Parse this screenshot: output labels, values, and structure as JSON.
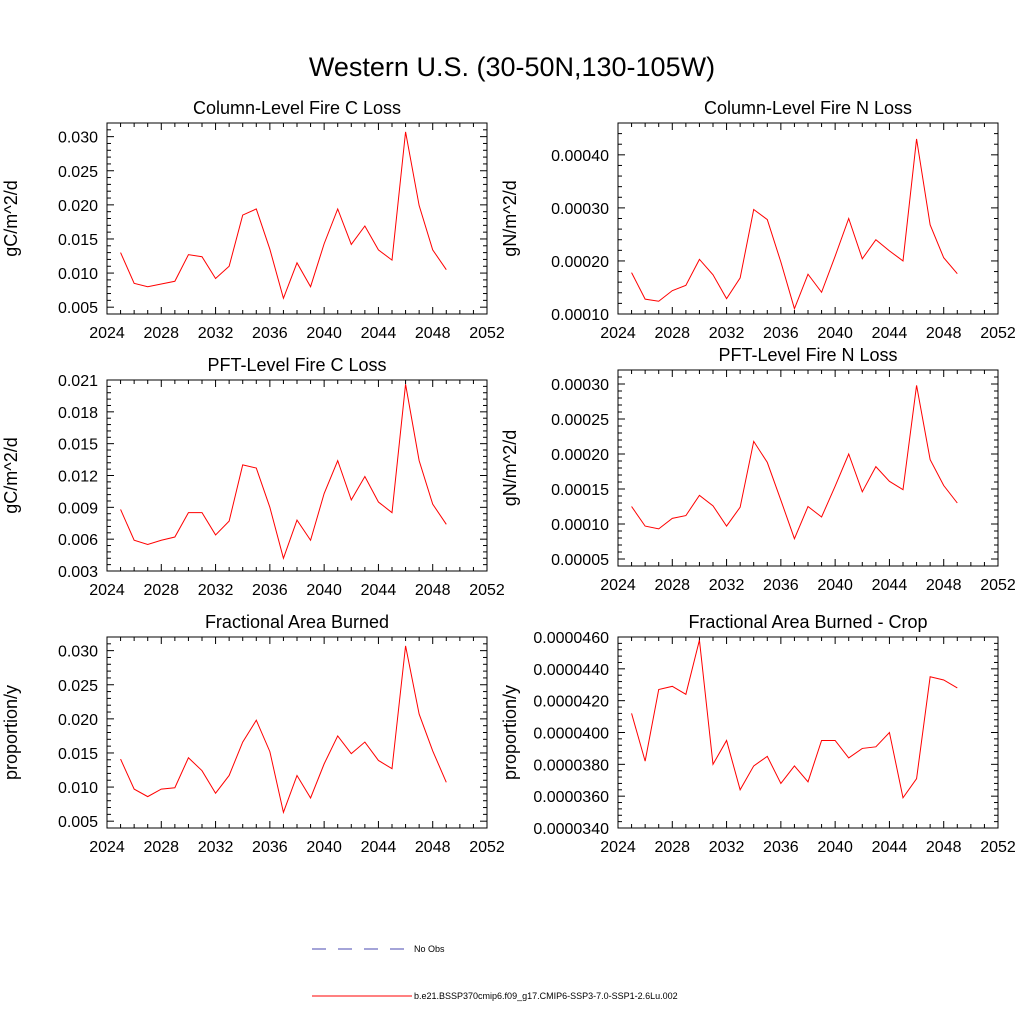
{
  "figure": {
    "title": "Western U.S. (30-50N,130-105W)"
  },
  "colors": {
    "series": "#ff0000",
    "obs": "#4a4ab0",
    "axes": "#000000"
  },
  "chart_data": [
    {
      "type": "line",
      "title": "Column-Level Fire C Loss",
      "xlabel": "",
      "ylabel": "gC/m^2/d",
      "xlim": [
        2024,
        2052
      ],
      "ylim": [
        0.004,
        0.032
      ],
      "xticks": [
        2024,
        2028,
        2032,
        2036,
        2040,
        2044,
        2048,
        2052
      ],
      "yticks": [
        0.005,
        0.01,
        0.015,
        0.02,
        0.025,
        0.03
      ],
      "ytick_labels": [
        "0.005",
        "0.010",
        "0.015",
        "0.020",
        "0.025",
        "0.030"
      ],
      "x": [
        2025,
        2026,
        2027,
        2028,
        2029,
        2030,
        2031,
        2032,
        2033,
        2034,
        2035,
        2036,
        2037,
        2038,
        2039,
        2040,
        2041,
        2042,
        2043,
        2044,
        2045,
        2046,
        2047,
        2048,
        2049
      ],
      "series": [
        {
          "values": [
            0.013,
            0.0085,
            0.008,
            0.0084,
            0.0088,
            0.0127,
            0.0124,
            0.0092,
            0.011,
            0.0185,
            0.0194,
            0.0135,
            0.0063,
            0.0115,
            0.008,
            0.0143,
            0.0194,
            0.0142,
            0.0169,
            0.0134,
            0.0119,
            0.0307,
            0.0199,
            0.0134,
            0.0105
          ]
        }
      ]
    },
    {
      "type": "line",
      "title": "Column-Level Fire N Loss",
      "xlabel": "",
      "ylabel": "gN/m^2/d",
      "xlim": [
        2024,
        2052
      ],
      "ylim": [
        0.0001,
        0.00046
      ],
      "xticks": [
        2024,
        2028,
        2032,
        2036,
        2040,
        2044,
        2048,
        2052
      ],
      "yticks": [
        0.0001,
        0.0002,
        0.0003,
        0.0004
      ],
      "ytick_labels": [
        "0.00010",
        "0.00020",
        "0.00030",
        "0.00040"
      ],
      "x": [
        2025,
        2026,
        2027,
        2028,
        2029,
        2030,
        2031,
        2032,
        2033,
        2034,
        2035,
        2036,
        2037,
        2038,
        2039,
        2040,
        2041,
        2042,
        2043,
        2044,
        2045,
        2046,
        2047,
        2048,
        2049
      ],
      "series": [
        {
          "values": [
            0.000178,
            0.000128,
            0.000124,
            0.000144,
            0.000154,
            0.000203,
            0.000174,
            0.000129,
            0.000168,
            0.000297,
            0.000278,
            0.000198,
            0.00011,
            0.000175,
            0.000141,
            0.000209,
            0.00028,
            0.000204,
            0.00024,
            0.000219,
            0.0002,
            0.00043,
            0.000268,
            0.000206,
            0.000176
          ]
        }
      ]
    },
    {
      "type": "line",
      "title": "PFT-Level Fire C Loss",
      "xlabel": "",
      "ylabel": "gC/m^2/d",
      "xlim": [
        2024,
        2052
      ],
      "ylim": [
        0.003,
        0.021
      ],
      "xticks": [
        2024,
        2028,
        2032,
        2036,
        2040,
        2044,
        2048,
        2052
      ],
      "yticks": [
        0.003,
        0.006,
        0.009,
        0.012,
        0.015,
        0.018,
        0.021
      ],
      "ytick_labels": [
        "0.003",
        "0.006",
        "0.009",
        "0.012",
        "0.015",
        "0.018",
        "0.021"
      ],
      "x": [
        2025,
        2026,
        2027,
        2028,
        2029,
        2030,
        2031,
        2032,
        2033,
        2034,
        2035,
        2036,
        2037,
        2038,
        2039,
        2040,
        2041,
        2042,
        2043,
        2044,
        2045,
        2046,
        2047,
        2048,
        2049
      ],
      "series": [
        {
          "values": [
            0.0088,
            0.0059,
            0.0055,
            0.0059,
            0.0062,
            0.0085,
            0.0085,
            0.0064,
            0.0077,
            0.013,
            0.0127,
            0.009,
            0.0042,
            0.0078,
            0.0059,
            0.0103,
            0.0134,
            0.0097,
            0.0119,
            0.0095,
            0.0085,
            0.0206,
            0.0134,
            0.0093,
            0.0074
          ]
        }
      ]
    },
    {
      "type": "line",
      "title": "PFT-Level Fire N Loss",
      "xlabel": "",
      "ylabel": "gN/m^2/d",
      "xlim": [
        2024,
        2052
      ],
      "ylim": [
        4e-05,
        0.00032
      ],
      "xticks": [
        2024,
        2028,
        2032,
        2036,
        2040,
        2044,
        2048,
        2052
      ],
      "yticks": [
        5e-05,
        0.0001,
        0.00015,
        0.0002,
        0.00025,
        0.0003
      ],
      "ytick_labels": [
        "0.00005",
        "0.00010",
        "0.00015",
        "0.00020",
        "0.00025",
        "0.00030"
      ],
      "x": [
        2025,
        2026,
        2027,
        2028,
        2029,
        2030,
        2031,
        2032,
        2033,
        2034,
        2035,
        2036,
        2037,
        2038,
        2039,
        2040,
        2041,
        2042,
        2043,
        2044,
        2045,
        2046,
        2047,
        2048,
        2049
      ],
      "series": [
        {
          "values": [
            0.000125,
            9.7e-05,
            9.3e-05,
            0.000108,
            0.000112,
            0.000141,
            0.000126,
            9.7e-05,
            0.000124,
            0.000218,
            0.000188,
            0.000134,
            7.9e-05,
            0.000125,
            0.00011,
            0.000154,
            0.0002,
            0.000146,
            0.000182,
            0.000161,
            0.000149,
            0.000298,
            0.000192,
            0.000155,
            0.00013
          ]
        }
      ]
    },
    {
      "type": "line",
      "title": "Fractional Area Burned",
      "xlabel": "",
      "ylabel": "proportion/y",
      "xlim": [
        2024,
        2052
      ],
      "ylim": [
        0.004,
        0.032
      ],
      "xticks": [
        2024,
        2028,
        2032,
        2036,
        2040,
        2044,
        2048,
        2052
      ],
      "yticks": [
        0.005,
        0.01,
        0.015,
        0.02,
        0.025,
        0.03
      ],
      "ytick_labels": [
        "0.005",
        "0.010",
        "0.015",
        "0.020",
        "0.025",
        "0.030"
      ],
      "x": [
        2025,
        2026,
        2027,
        2028,
        2029,
        2030,
        2031,
        2032,
        2033,
        2034,
        2035,
        2036,
        2037,
        2038,
        2039,
        2040,
        2041,
        2042,
        2043,
        2044,
        2045,
        2046,
        2047,
        2048,
        2049
      ],
      "series": [
        {
          "values": [
            0.0141,
            0.0097,
            0.0086,
            0.0097,
            0.0099,
            0.0143,
            0.0124,
            0.0091,
            0.0117,
            0.0166,
            0.0198,
            0.0152,
            0.0063,
            0.0117,
            0.0084,
            0.0134,
            0.0175,
            0.0149,
            0.0166,
            0.0139,
            0.0127,
            0.0307,
            0.0207,
            0.0153,
            0.0107
          ]
        }
      ]
    },
    {
      "type": "line",
      "title": "Fractional Area Burned - Crop",
      "xlabel": "",
      "ylabel": "proportion/y",
      "xlim": [
        2024,
        2052
      ],
      "ylim": [
        3.4e-05,
        4.6e-05
      ],
      "xticks": [
        2024,
        2028,
        2032,
        2036,
        2040,
        2044,
        2048,
        2052
      ],
      "yticks": [
        3.4e-05,
        3.6e-05,
        3.8e-05,
        4e-05,
        4.2e-05,
        4.4e-05,
        4.6e-05
      ],
      "ytick_labels": [
        "0.0000340",
        "0.0000360",
        "0.0000380",
        "0.0000400",
        "0.0000420",
        "0.0000440",
        "0.0000460"
      ],
      "x": [
        2025,
        2026,
        2027,
        2028,
        2029,
        2030,
        2031,
        2032,
        2033,
        2034,
        2035,
        2036,
        2037,
        2038,
        2039,
        2040,
        2041,
        2042,
        2043,
        2044,
        2045,
        2046,
        2047,
        2048,
        2049
      ],
      "series": [
        {
          "values": [
            4.12e-05,
            3.82e-05,
            4.27e-05,
            4.29e-05,
            4.24e-05,
            4.58e-05,
            3.8e-05,
            3.95e-05,
            3.64e-05,
            3.79e-05,
            3.85e-05,
            3.68e-05,
            3.79e-05,
            3.69e-05,
            3.95e-05,
            3.95e-05,
            3.84e-05,
            3.9e-05,
            3.91e-05,
            4e-05,
            3.59e-05,
            3.71e-05,
            4.35e-05,
            4.33e-05,
            4.28e-05
          ]
        }
      ]
    }
  ],
  "legend": {
    "items": [
      {
        "label": "No Obs",
        "style": "dashed"
      },
      {
        "label": "b.e21.BSSP370cmip6.f09_g17.CMIP6-SSP3-7.0-SSP1-2.6Lu.002",
        "style": "solid"
      }
    ]
  }
}
